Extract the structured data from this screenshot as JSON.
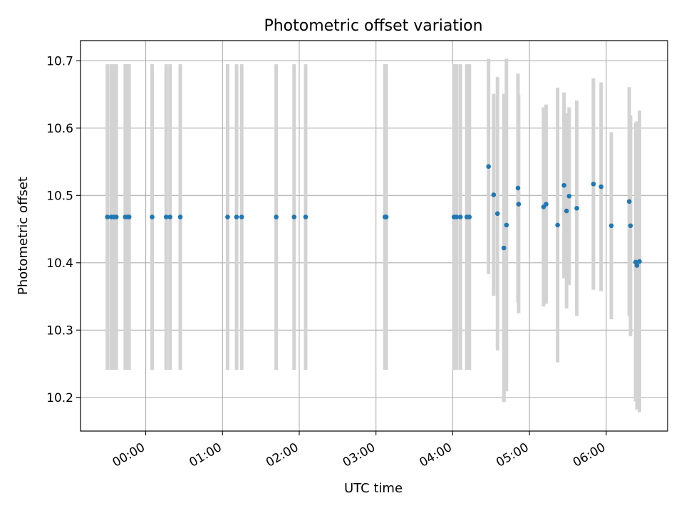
{
  "chart_data": {
    "type": "scatter",
    "title": "Photometric offset variation",
    "xlabel": "UTC time",
    "ylabel": "Photometric offset",
    "x_unit": "minutes",
    "xlim": [
      -51,
      408
    ],
    "ylim": [
      10.15,
      10.73
    ],
    "x_ticks": [
      {
        "value": 0,
        "label": "00:00"
      },
      {
        "value": 60,
        "label": "01:00"
      },
      {
        "value": 120,
        "label": "02:00"
      },
      {
        "value": 180,
        "label": "03:00"
      },
      {
        "value": 240,
        "label": "04:00"
      },
      {
        "value": 300,
        "label": "05:00"
      },
      {
        "value": 360,
        "label": "06:00"
      }
    ],
    "y_ticks": [
      {
        "value": 10.2,
        "label": "10.2"
      },
      {
        "value": 10.3,
        "label": "10.3"
      },
      {
        "value": 10.4,
        "label": "10.4"
      },
      {
        "value": 10.5,
        "label": "10.5"
      },
      {
        "value": 10.6,
        "label": "10.6"
      },
      {
        "value": 10.7,
        "label": "10.7"
      }
    ],
    "grid": true,
    "marker_color": "#1f77b4",
    "errorbar_color": "#d3d3d3",
    "points": [
      {
        "x": -30,
        "y": 10.468,
        "err": 0.227
      },
      {
        "x": -27,
        "y": 10.468,
        "err": 0.227
      },
      {
        "x": -25,
        "y": 10.468,
        "err": 0.227
      },
      {
        "x": -23,
        "y": 10.468,
        "err": 0.227
      },
      {
        "x": -16,
        "y": 10.468,
        "err": 0.227
      },
      {
        "x": -14,
        "y": 10.468,
        "err": 0.227
      },
      {
        "x": -13,
        "y": 10.468,
        "err": 0.227
      },
      {
        "x": 5,
        "y": 10.468,
        "err": 0.227
      },
      {
        "x": 16,
        "y": 10.468,
        "err": 0.227
      },
      {
        "x": 19,
        "y": 10.468,
        "err": 0.227
      },
      {
        "x": 27,
        "y": 10.468,
        "err": 0.227
      },
      {
        "x": 64,
        "y": 10.468,
        "err": 0.227
      },
      {
        "x": 71,
        "y": 10.468,
        "err": 0.227
      },
      {
        "x": 75,
        "y": 10.468,
        "err": 0.227
      },
      {
        "x": 102,
        "y": 10.468,
        "err": 0.227
      },
      {
        "x": 116,
        "y": 10.468,
        "err": 0.227
      },
      {
        "x": 125,
        "y": 10.468,
        "err": 0.227
      },
      {
        "x": 187,
        "y": 10.468,
        "err": 0.227
      },
      {
        "x": 188,
        "y": 10.468,
        "err": 0.227
      },
      {
        "x": 241,
        "y": 10.468,
        "err": 0.227
      },
      {
        "x": 243,
        "y": 10.468,
        "err": 0.227
      },
      {
        "x": 246,
        "y": 10.468,
        "err": 0.227
      },
      {
        "x": 251,
        "y": 10.468,
        "err": 0.227
      },
      {
        "x": 253,
        "y": 10.468,
        "err": 0.227
      },
      {
        "x": 268,
        "y": 10.543,
        "err": 0.16
      },
      {
        "x": 272,
        "y": 10.501,
        "err": 0.15
      },
      {
        "x": 275,
        "y": 10.473,
        "err": 0.203
      },
      {
        "x": 280,
        "y": 10.422,
        "err": 0.229
      },
      {
        "x": 282,
        "y": 10.456,
        "err": 0.247
      },
      {
        "x": 291,
        "y": 10.511,
        "err": 0.17
      },
      {
        "x": 291.5,
        "y": 10.487,
        "err": 0.162
      },
      {
        "x": 311,
        "y": 10.483,
        "err": 0.148
      },
      {
        "x": 313,
        "y": 10.487,
        "err": 0.148
      },
      {
        "x": 322,
        "y": 10.456,
        "err": 0.204
      },
      {
        "x": 327,
        "y": 10.515,
        "err": 0.138
      },
      {
        "x": 329,
        "y": 10.477,
        "err": 0.145
      },
      {
        "x": 331,
        "y": 10.499,
        "err": 0.132
      },
      {
        "x": 337,
        "y": 10.481,
        "err": 0.16
      },
      {
        "x": 350,
        "y": 10.517,
        "err": 0.157
      },
      {
        "x": 356,
        "y": 10.513,
        "err": 0.155
      },
      {
        "x": 364,
        "y": 10.455,
        "err": 0.139
      },
      {
        "x": 378,
        "y": 10.491,
        "err": 0.17
      },
      {
        "x": 379,
        "y": 10.455,
        "err": 0.164
      },
      {
        "x": 383,
        "y": 10.401,
        "err": 0.207
      },
      {
        "x": 384,
        "y": 10.396,
        "err": 0.214
      },
      {
        "x": 386,
        "y": 10.402,
        "err": 0.224
      }
    ]
  }
}
